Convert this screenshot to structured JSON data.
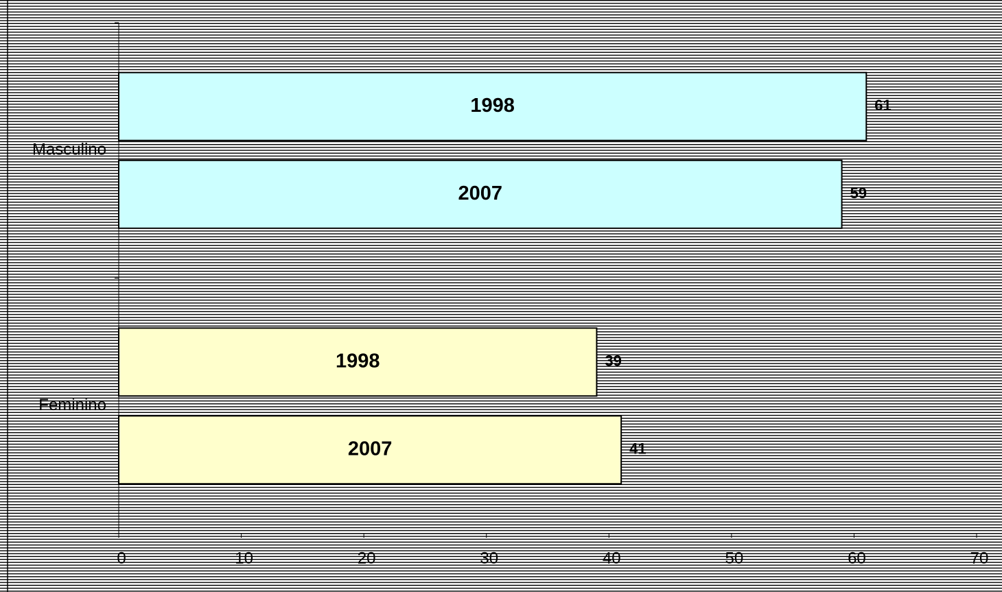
{
  "chart_data": {
    "type": "bar",
    "orientation": "horizontal",
    "categories": [
      "Masculino",
      "Feminino"
    ],
    "category_colors": [
      "#ccffff",
      "#ffffcc"
    ],
    "series": [
      {
        "name": "1998",
        "values": [
          61,
          39
        ]
      },
      {
        "name": "2007",
        "values": [
          59,
          41
        ]
      }
    ],
    "xlim": [
      0,
      70
    ],
    "xticks": [
      0,
      10,
      20,
      30,
      40,
      50,
      60,
      70
    ]
  }
}
